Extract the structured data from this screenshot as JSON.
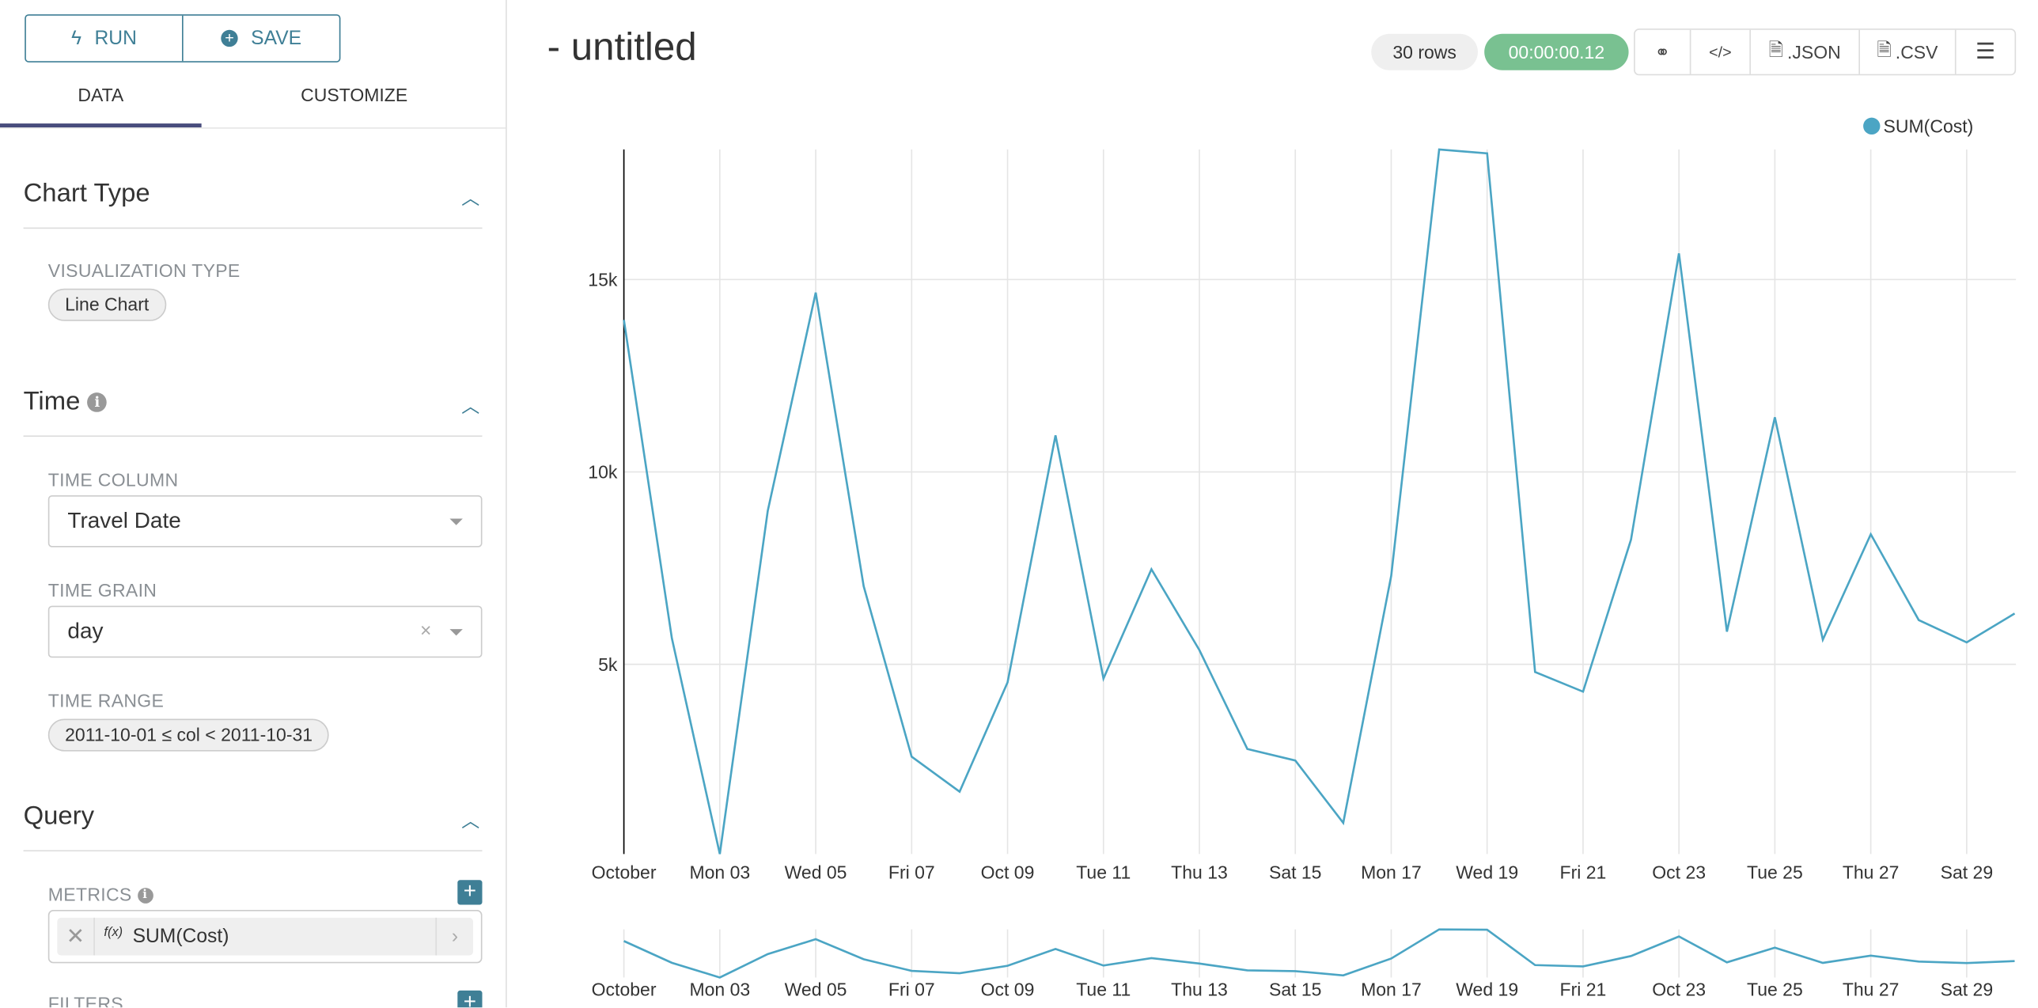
{
  "sidebar": {
    "run_label": "RUN",
    "save_label": "SAVE",
    "tabs": [
      {
        "label": "DATA",
        "active": true
      },
      {
        "label": "CUSTOMIZE",
        "active": false
      }
    ],
    "chart_type": {
      "title": "Chart Type",
      "viz_label": "VISUALIZATION TYPE",
      "viz_value": "Line Chart"
    },
    "time": {
      "title": "Time",
      "column_label": "TIME COLUMN",
      "column_value": "Travel Date",
      "grain_label": "TIME GRAIN",
      "grain_value": "day",
      "range_label": "TIME RANGE",
      "range_value": "2011-10-01 ≤ col < 2011-10-31"
    },
    "query": {
      "title": "Query",
      "metrics_label": "METRICS",
      "metric_value": "SUM(Cost)",
      "fx": "f(x)",
      "filters_label": "FILTERS"
    }
  },
  "header": {
    "title": "- untitled",
    "rows": "30 rows",
    "timer": "00:00:00.12",
    "json_label": ".JSON",
    "csv_label": ".CSV",
    "timer_color": "#79c191"
  },
  "chart_data": {
    "type": "line",
    "series": [
      {
        "name": "SUM(Cost)",
        "color": "#4ba5c4",
        "values": [
          13950,
          5680,
          70,
          8990,
          14660,
          7030,
          2600,
          1690,
          4530,
          10950,
          4630,
          7470,
          5370,
          2800,
          2500,
          880,
          7300,
          18380,
          18280,
          4800,
          4290,
          8240,
          15680,
          5850,
          11420,
          5640,
          8380,
          6150,
          5570,
          6320
        ]
      }
    ],
    "x": [
      "2011-10-01",
      "2011-10-02",
      "2011-10-03",
      "2011-10-04",
      "2011-10-05",
      "2011-10-06",
      "2011-10-07",
      "2011-10-08",
      "2011-10-09",
      "2011-10-10",
      "2011-10-11",
      "2011-10-12",
      "2011-10-13",
      "2011-10-14",
      "2011-10-15",
      "2011-10-16",
      "2011-10-17",
      "2011-10-18",
      "2011-10-19",
      "2011-10-20",
      "2011-10-21",
      "2011-10-22",
      "2011-10-23",
      "2011-10-24",
      "2011-10-25",
      "2011-10-26",
      "2011-10-27",
      "2011-10-28",
      "2011-10-29",
      "2011-10-30"
    ],
    "x_tick_labels": [
      "October",
      "Mon 03",
      "Wed 05",
      "Fri 07",
      "Oct 09",
      "Tue 11",
      "Thu 13",
      "Sat 15",
      "Mon 17",
      "Wed 19",
      "Fri 21",
      "Oct 23",
      "Tue 25",
      "Thu 27",
      "Sat 29"
    ],
    "y_ticks": [
      5000,
      10000,
      15000
    ],
    "y_tick_labels": [
      "5k",
      "10k",
      "15k"
    ],
    "ylim": [
      70,
      18380
    ],
    "grid": true,
    "legend": "top-right"
  }
}
